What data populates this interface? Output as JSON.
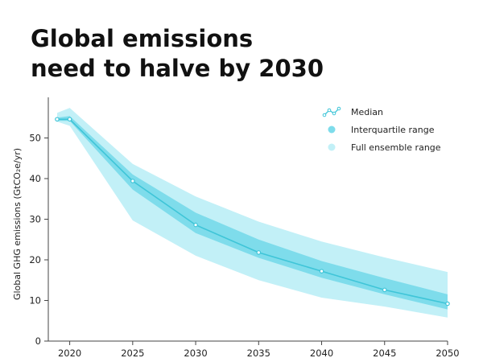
{
  "chart_data": {
    "type": "area",
    "title_lines": [
      "Global emissions",
      "need to halve by 2030"
    ],
    "xlabel": "",
    "ylabel": "Global GHG emissions (GtCO₂e/yr)",
    "xlim": [
      2018.3,
      2050
    ],
    "ylim": [
      0,
      60
    ],
    "x_ticks": [
      2020,
      2025,
      2030,
      2035,
      2040,
      2045,
      2050
    ],
    "x_tick_labels": [
      "2020",
      "2025",
      "2030",
      "2035",
      "2040",
      "2045",
      "2050"
    ],
    "y_ticks": [
      0,
      10,
      20,
      30,
      40,
      50
    ],
    "y_tick_labels": [
      "0",
      "10",
      "20",
      "30",
      "40",
      "50"
    ],
    "x": [
      2019,
      2020,
      2025,
      2030,
      2035,
      2040,
      2045,
      2050
    ],
    "series": [
      {
        "name": "Median",
        "kind": "line",
        "values": [
          54.6,
          54.6,
          39.4,
          28.6,
          21.8,
          17.2,
          12.6,
          9.2
        ]
      },
      {
        "name": "Interquartile range",
        "kind": "band",
        "lower": [
          54.2,
          54.2,
          37.3,
          26.6,
          20.5,
          15.6,
          11.5,
          7.8
        ],
        "upper": [
          55.0,
          55.4,
          41.0,
          31.6,
          25.0,
          19.7,
          15.5,
          11.5
        ]
      },
      {
        "name": "Full ensemble range",
        "kind": "band",
        "lower": [
          54.0,
          53.0,
          29.7,
          21.0,
          15.0,
          10.7,
          8.5,
          5.8
        ],
        "upper": [
          56.2,
          57.4,
          43.6,
          35.6,
          29.4,
          24.5,
          20.6,
          17.0
        ]
      }
    ],
    "legend": {
      "position": "top-right",
      "entries": [
        "Median",
        "Interquartile range",
        "Full ensemble range"
      ]
    },
    "grid": false,
    "colors": {
      "median_line": "#3fc5d8",
      "median_marker_fill": "#ffffff",
      "interquartile": "#7edceb",
      "full_range": "#c2f0f7",
      "axis": "#444444"
    }
  }
}
